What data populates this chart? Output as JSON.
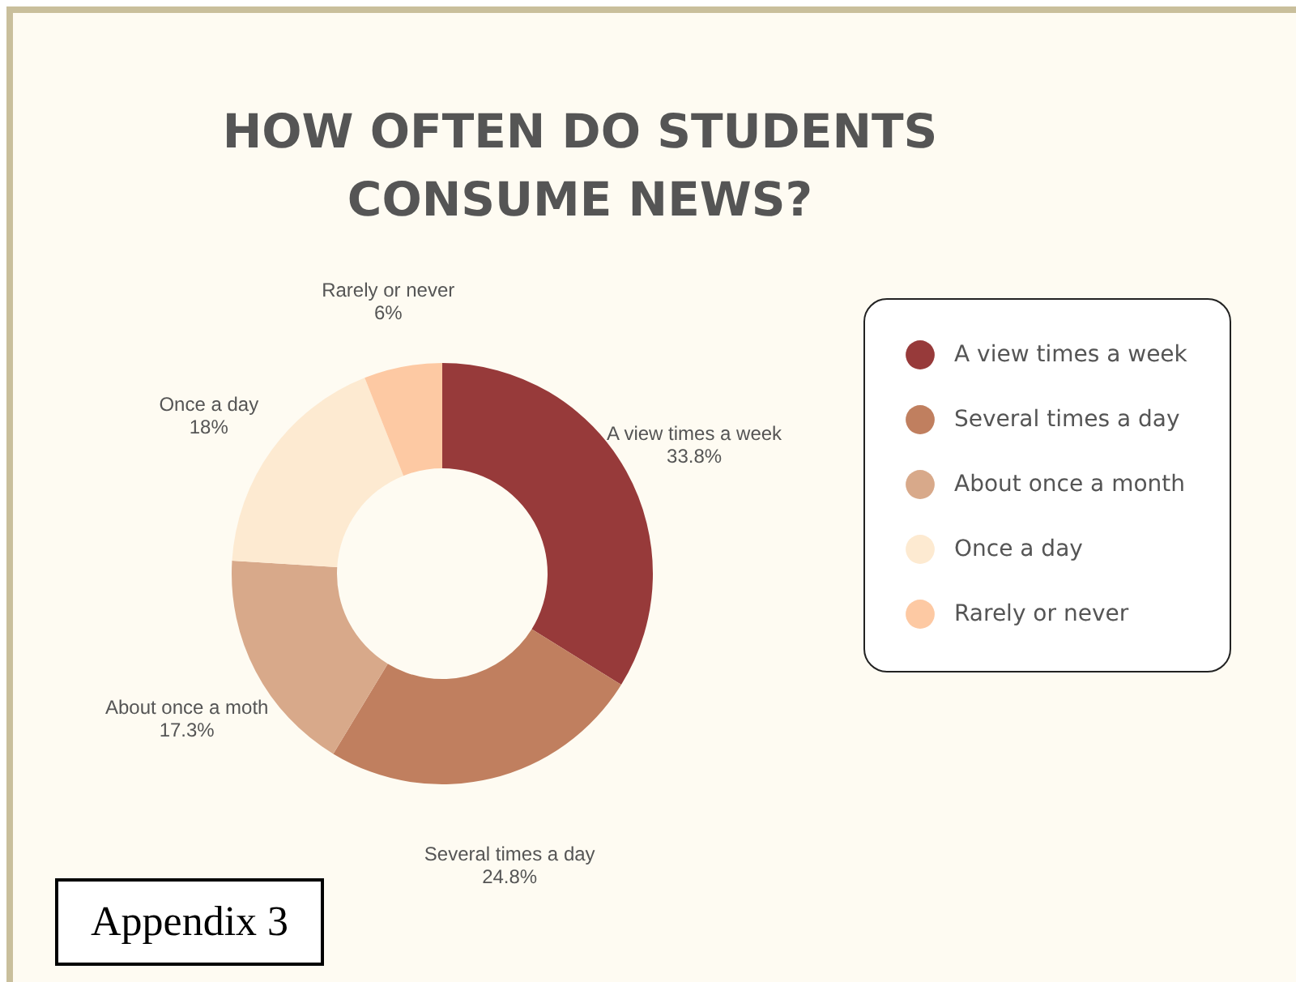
{
  "chart_data": {
    "type": "donut",
    "title": "HOW OFTEN DO STUDENTS CONSUME NEWS?",
    "categories": [
      "A view times a week",
      "Several times a day",
      "About once a month",
      "Once a day",
      "Rarely or never"
    ],
    "values": [
      33.8,
      24.8,
      17.3,
      18,
      6
    ],
    "colors": [
      "#973a3a",
      "#c07f5f",
      "#d8a98a",
      "#fdead1",
      "#fdc9a3"
    ],
    "value_labels": [
      "33.8%",
      "24.8%",
      "17.3%",
      "18%",
      "6%"
    ],
    "annotations": [
      {
        "text": "A view times a week",
        "x": "A view times a week"
      },
      {
        "text": "Several times a day",
        "x": "Several times a day"
      },
      {
        "text": "About once a moth",
        "x": "About once a month"
      },
      {
        "text": "Once a day",
        "x": "Once a day"
      },
      {
        "text": "Rarely or never",
        "x": "Rarely or never"
      },
      "Appendix 3"
    ],
    "legend": "right"
  }
}
